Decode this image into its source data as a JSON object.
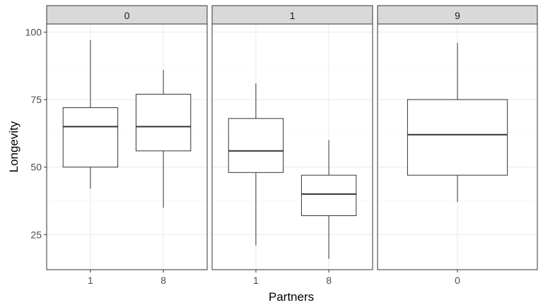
{
  "chart_data": {
    "type": "boxplot",
    "xlabel": "Partners",
    "ylabel": "Longevity",
    "ylim": [
      12,
      103
    ],
    "yticks": [
      25,
      50,
      75,
      100
    ],
    "grid": true,
    "facets": [
      {
        "strip": "0",
        "categories": [
          "1",
          "8"
        ],
        "boxes": [
          {
            "category": "1",
            "min": 42,
            "q1": 50,
            "median": 65,
            "q3": 72,
            "max": 97
          },
          {
            "category": "8",
            "min": 35,
            "q1": 56,
            "median": 65,
            "q3": 77,
            "max": 86
          }
        ]
      },
      {
        "strip": "1",
        "categories": [
          "1",
          "8"
        ],
        "boxes": [
          {
            "category": "1",
            "min": 21,
            "q1": 48,
            "median": 56,
            "q3": 68,
            "max": 81
          },
          {
            "category": "8",
            "min": 16,
            "q1": 32,
            "median": 40,
            "q3": 47,
            "max": 60
          }
        ]
      },
      {
        "strip": "9",
        "categories": [
          "0"
        ],
        "boxes": [
          {
            "category": "0",
            "min": 37,
            "q1": 47,
            "median": 62,
            "q3": 75,
            "max": 96
          }
        ]
      }
    ]
  },
  "colors": {
    "strip_fill": "#d9d9d9",
    "panel_border": "#333333",
    "grid_major": "#ebebeb",
    "grid_minor": "#f5f5f5",
    "box_line": "#333333",
    "text": "#4d4d4d",
    "title": "#000000"
  }
}
